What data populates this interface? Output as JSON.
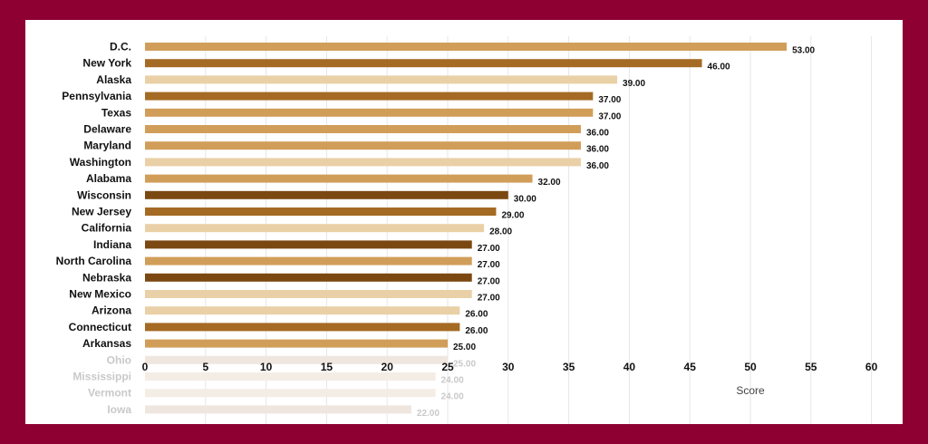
{
  "chart_data": {
    "type": "bar",
    "orientation": "horizontal",
    "categories": [
      "D.C.",
      "New York",
      "Alaska",
      "Pennsylvania",
      "Texas",
      "Delaware",
      "Maryland",
      "Washington",
      "Alabama",
      "Wisconsin",
      "New Jersey",
      "California",
      "Indiana",
      "North Carolina",
      "Nebraska",
      "New Mexico",
      "Arizona",
      "Connecticut",
      "Arkansas",
      "Ohio",
      "Mississippi",
      "Vermont",
      "Iowa"
    ],
    "values": [
      53,
      46,
      39,
      37,
      37,
      36,
      36,
      36,
      32,
      30,
      29,
      28,
      27,
      27,
      27,
      27,
      26,
      26,
      25,
      25,
      24,
      24,
      22
    ],
    "value_labels": [
      "53.00",
      "46.00",
      "39.00",
      "37.00",
      "37.00",
      "36.00",
      "36.00",
      "36.00",
      "32.00",
      "30.00",
      "29.00",
      "28.00",
      "27.00",
      "27.00",
      "27.00",
      "27.00",
      "26.00",
      "26.00",
      "25.00",
      "25.00",
      "24.00",
      "24.00",
      "22.00"
    ],
    "bar_colors": [
      "#d19e5a",
      "#a56a24",
      "#ead0a6",
      "#a56a24",
      "#d19e5a",
      "#d19e5a",
      "#d19e5a",
      "#ead0a6",
      "#d19e5a",
      "#7b4812",
      "#a56a24",
      "#ead0a6",
      "#7b4812",
      "#d19e5a",
      "#7b4812",
      "#ead0a6",
      "#ead0a6",
      "#a56a24",
      "#d19e5a",
      "#efe6df",
      "#f4ede6",
      "#f4ede6",
      "#efe6df"
    ],
    "faded_from_index": 19,
    "xlabel": "Score",
    "ylabel": "",
    "xlim": [
      0,
      60
    ],
    "xticks": [
      0,
      5,
      10,
      15,
      20,
      25,
      30,
      35,
      40,
      45,
      50,
      55,
      60
    ],
    "grid": "vertical"
  }
}
